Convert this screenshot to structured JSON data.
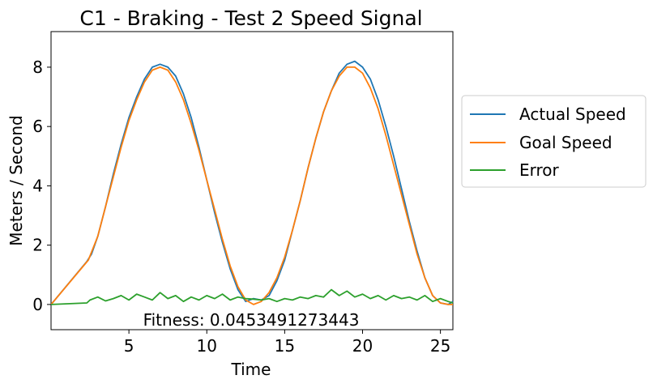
{
  "chart_data": {
    "type": "line",
    "title": "C1 - Braking - Test 2  Speed Signal",
    "xlabel": "Time",
    "ylabel": "Meters / Second",
    "xlim": [
      0,
      25.8
    ],
    "ylim": [
      -0.85,
      9.2
    ],
    "xticks": [
      5,
      10,
      15,
      20,
      25
    ],
    "yticks": [
      0,
      2,
      4,
      6,
      8
    ],
    "grid": false,
    "legend_position": "outside-right",
    "annotation": "Fitness: 0.0453491273443",
    "series": [
      {
        "name": "Actual Speed",
        "color": "#1f77b4",
        "x": [
          0,
          2.3,
          2.6,
          3.0,
          3.5,
          4.0,
          4.5,
          5.0,
          5.5,
          6.0,
          6.5,
          7.0,
          7.5,
          8.0,
          8.5,
          9.0,
          9.5,
          10.0,
          10.5,
          11.0,
          11.5,
          12.0,
          12.5,
          13.0,
          13.5,
          14.0,
          14.5,
          15.0,
          15.5,
          16.0,
          16.5,
          17.0,
          17.5,
          18.0,
          18.5,
          19.0,
          19.5,
          20.0,
          20.5,
          21.0,
          21.5,
          22.0,
          22.5,
          23.0,
          23.5,
          24.0,
          24.5,
          25.0,
          25.5,
          25.8
        ],
        "y": [
          0,
          1.45,
          1.7,
          2.3,
          3.3,
          4.4,
          5.4,
          6.3,
          7.0,
          7.6,
          8.0,
          8.1,
          8.0,
          7.7,
          7.1,
          6.3,
          5.3,
          4.2,
          3.1,
          2.1,
          1.2,
          0.5,
          0.1,
          0.2,
          0.15,
          0.3,
          0.8,
          1.5,
          2.5,
          3.5,
          4.6,
          5.6,
          6.5,
          7.2,
          7.8,
          8.1,
          8.2,
          8.0,
          7.6,
          6.9,
          6.0,
          5.0,
          3.9,
          2.8,
          1.8,
          0.9,
          0.3,
          0.05,
          0.0,
          0.1
        ]
      },
      {
        "name": "Goal Speed",
        "color": "#ff7f0e",
        "x": [
          0,
          2.4,
          3.0,
          3.5,
          4.0,
          4.5,
          5.0,
          5.5,
          6.0,
          6.5,
          7.0,
          7.5,
          8.0,
          8.5,
          9.0,
          9.5,
          10.0,
          10.5,
          11.0,
          11.5,
          12.0,
          12.5,
          13.0,
          13.5,
          14.0,
          14.5,
          15.0,
          15.5,
          16.0,
          16.5,
          17.0,
          17.5,
          18.0,
          18.5,
          19.0,
          19.5,
          20.0,
          20.5,
          21.0,
          21.5,
          22.0,
          22.5,
          23.0,
          23.5,
          24.0,
          24.5,
          25.0,
          25.5,
          25.8
        ],
        "y": [
          0,
          1.5,
          2.3,
          3.3,
          4.3,
          5.3,
          6.2,
          6.9,
          7.5,
          7.9,
          8.0,
          7.9,
          7.5,
          6.9,
          6.1,
          5.2,
          4.2,
          3.2,
          2.2,
          1.3,
          0.6,
          0.15,
          0.0,
          0.1,
          0.4,
          0.9,
          1.6,
          2.5,
          3.5,
          4.6,
          5.6,
          6.5,
          7.2,
          7.7,
          8.0,
          8.0,
          7.8,
          7.3,
          6.6,
          5.7,
          4.7,
          3.7,
          2.7,
          1.7,
          0.9,
          0.3,
          0.05,
          0.0,
          0.0
        ]
      },
      {
        "name": "Error",
        "color": "#2ca02c",
        "x": [
          0,
          2.3,
          2.5,
          3.0,
          3.5,
          4.0,
          4.5,
          5.0,
          5.5,
          6.0,
          6.5,
          7.0,
          7.5,
          8.0,
          8.5,
          9.0,
          9.5,
          10.0,
          10.5,
          11.0,
          11.5,
          12.0,
          12.5,
          13.0,
          13.5,
          14.0,
          14.5,
          15.0,
          15.5,
          16.0,
          16.5,
          17.0,
          17.5,
          18.0,
          18.5,
          19.0,
          19.5,
          20.0,
          20.5,
          21.0,
          21.5,
          22.0,
          22.5,
          23.0,
          23.5,
          24.0,
          24.5,
          25.0,
          25.5,
          25.8
        ],
        "y": [
          0,
          0.05,
          0.15,
          0.25,
          0.12,
          0.2,
          0.3,
          0.15,
          0.35,
          0.25,
          0.15,
          0.4,
          0.2,
          0.3,
          0.1,
          0.25,
          0.15,
          0.3,
          0.2,
          0.35,
          0.15,
          0.25,
          0.2,
          0.18,
          0.15,
          0.2,
          0.1,
          0.2,
          0.15,
          0.25,
          0.2,
          0.3,
          0.25,
          0.5,
          0.3,
          0.45,
          0.25,
          0.35,
          0.2,
          0.3,
          0.15,
          0.3,
          0.2,
          0.25,
          0.15,
          0.3,
          0.1,
          0.2,
          0.1,
          0.05
        ]
      }
    ]
  }
}
